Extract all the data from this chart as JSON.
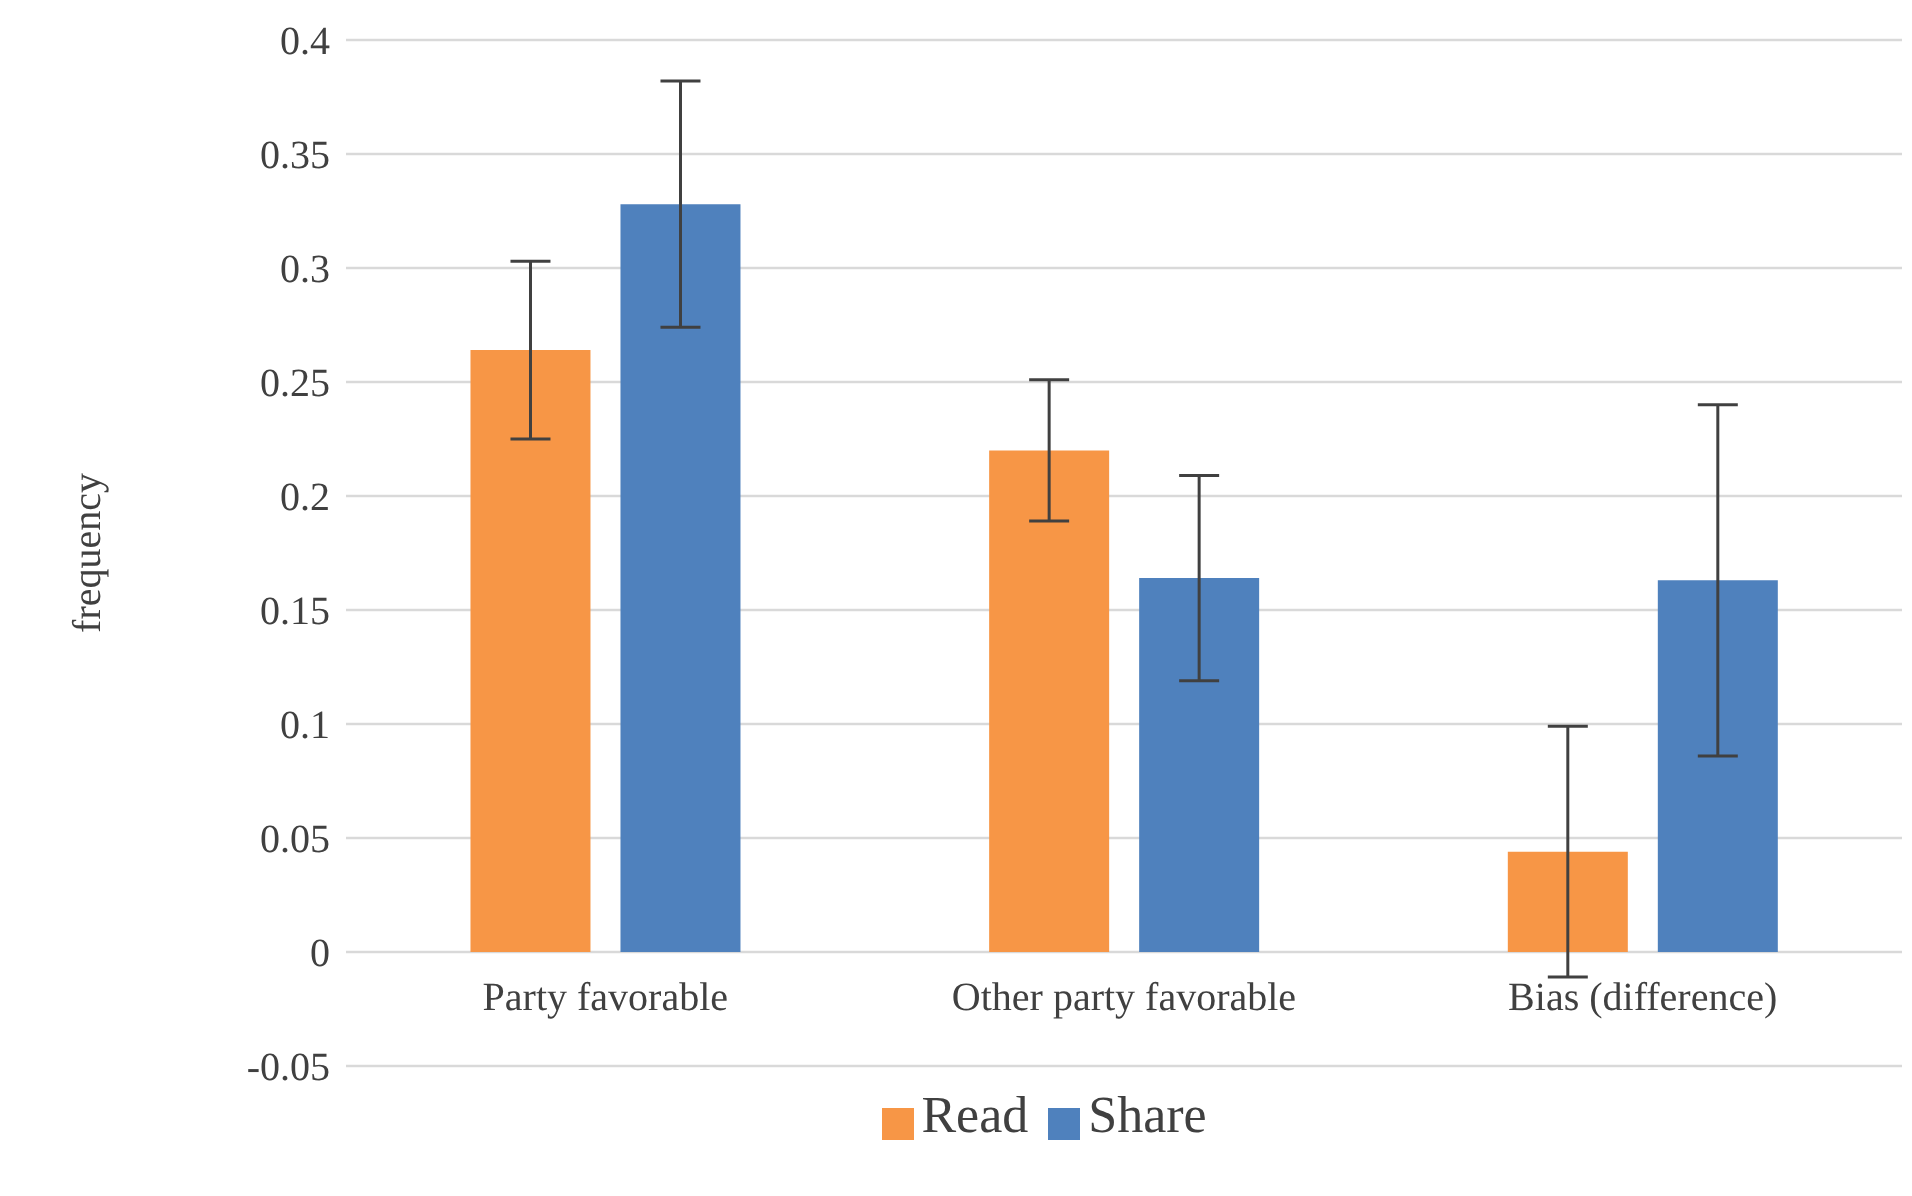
{
  "chart_data": {
    "type": "bar",
    "ylabel": "frequency",
    "categories": [
      "Party favorable",
      "Other party favorable",
      "Bias (difference)"
    ],
    "series": [
      {
        "name": "Read",
        "color": "#f79646",
        "values": [
          0.264,
          0.22,
          0.044
        ],
        "errors": [
          0.039,
          0.031,
          0.055
        ]
      },
      {
        "name": "Share",
        "color": "#4f81bd",
        "values": [
          0.328,
          0.164,
          0.163
        ],
        "errors": [
          0.054,
          0.045,
          0.077
        ]
      }
    ],
    "ylim": [
      -0.05,
      0.4
    ],
    "yticks": [
      -0.05,
      0,
      0.05,
      0.1,
      0.15,
      0.2,
      0.25,
      0.3,
      0.35,
      0.4
    ],
    "grid": "y",
    "legend": "bottom"
  }
}
